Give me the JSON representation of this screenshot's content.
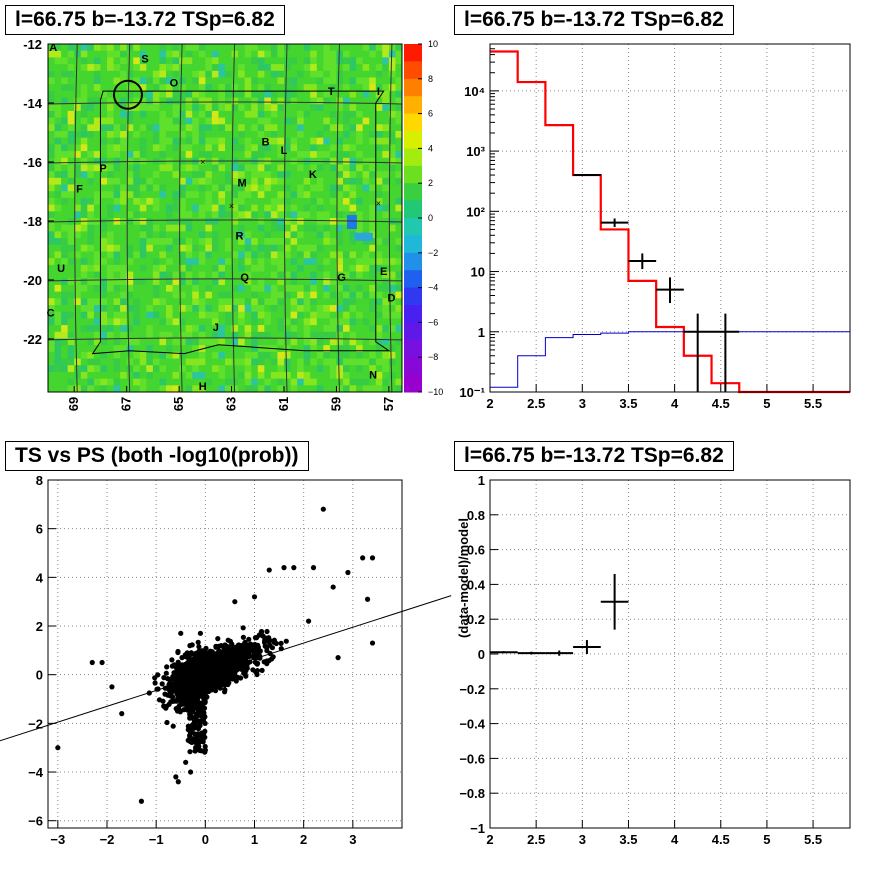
{
  "panels": [
    {
      "title": "l=66.75 b=-13.72 TSp=6.82"
    },
    {
      "title": "l=66.75 b=-13.72 TSp=6.82"
    },
    {
      "title": "TS vs PS (both -log10(prob))"
    },
    {
      "title": "l=66.75 b=-13.72 TSp=6.82"
    }
  ],
  "chart_data": [
    {
      "type": "heatmap",
      "title": "l=66.75 b=-13.72 TSp=6.82",
      "x_ticks": [
        "69",
        "67",
        "65",
        "63",
        "61",
        "59",
        "57"
      ],
      "y_ticks": [
        "-12",
        "-14",
        "-16",
        "-18",
        "-20",
        "-22"
      ],
      "xlim": [
        70,
        56.5
      ],
      "ylim": [
        -23.8,
        -12
      ],
      "z_ticks": [
        "10",
        "8",
        "6",
        "4",
        "2",
        "0",
        "−2",
        "−4",
        "−6",
        "−8",
        "−10"
      ],
      "zlim": [
        -10,
        10
      ],
      "labels": [
        {
          "text": "A",
          "l": 69.8,
          "b": -12.1
        },
        {
          "text": "S",
          "l": 66.3,
          "b": -12.5
        },
        {
          "text": "O",
          "l": 65.2,
          "b": -13.3
        },
        {
          "text": "T",
          "l": 59.2,
          "b": -13.6
        },
        {
          "text": "I",
          "l": 57.4,
          "b": -13.6
        },
        {
          "text": "B",
          "l": 61.7,
          "b": -15.3
        },
        {
          "text": "L",
          "l": 61.0,
          "b": -15.6
        },
        {
          "text": "P",
          "l": 67.9,
          "b": -16.2
        },
        {
          "text": "K",
          "l": 59.9,
          "b": -16.4
        },
        {
          "text": "M",
          "l": 62.6,
          "b": -16.7
        },
        {
          "text": "F",
          "l": 68.8,
          "b": -16.9
        },
        {
          "text": "R",
          "l": 62.7,
          "b": -18.5
        },
        {
          "text": "U",
          "l": 69.5,
          "b": -19.6
        },
        {
          "text": "Q",
          "l": 62.5,
          "b": -19.9
        },
        {
          "text": "G",
          "l": 58.8,
          "b": -19.9
        },
        {
          "text": "E",
          "l": 57.2,
          "b": -19.7
        },
        {
          "text": "D",
          "l": 56.9,
          "b": -20.6
        },
        {
          "text": "C",
          "l": 69.9,
          "b": -21.1
        },
        {
          "text": "J",
          "l": 63.6,
          "b": -21.6
        },
        {
          "text": "H",
          "l": 64.1,
          "b": -23.6
        },
        {
          "text": "N",
          "l": 57.6,
          "b": -23.2
        }
      ],
      "circle": {
        "l": 66.95,
        "b": -13.72
      }
    },
    {
      "type": "line",
      "title": "l=66.75 b=-13.72 TSp=6.82",
      "x_ticks": [
        "2",
        "2.5",
        "3",
        "3.5",
        "4",
        "4.5",
        "5",
        "5.5"
      ],
      "y_ticks": [
        "10⁻¹",
        "1",
        "10",
        "10²",
        "10³",
        "10⁴"
      ],
      "xlim": [
        2,
        5.9
      ],
      "ylim": [
        0.1,
        60000
      ],
      "y_scale": "log",
      "grid": true,
      "bin_edges": [
        2.0,
        2.3,
        2.6,
        2.9,
        3.2,
        3.5,
        3.8,
        4.1,
        4.4,
        4.7,
        5.0,
        5.9
      ],
      "series": [
        {
          "color": "#ff0000",
          "values": [
            45000,
            14000,
            2700,
            400,
            50,
            7,
            1.2,
            0.4,
            0.14,
            0.1,
            0.1
          ]
        },
        {
          "color": "#0000cc",
          "values": [
            0.12,
            0.4,
            0.8,
            0.9,
            0.95,
            1.0,
            1.0,
            1.0,
            1.0,
            1.0,
            1.0
          ]
        }
      ],
      "data_points": [
        {
          "x": 3.05,
          "y": 400,
          "xerr": 0.15,
          "ylo": 390,
          "yhi": 410
        },
        {
          "x": 3.35,
          "y": 65,
          "xerr": 0.15,
          "ylo": 55,
          "yhi": 76
        },
        {
          "x": 3.65,
          "y": 15,
          "xerr": 0.15,
          "ylo": 11,
          "yhi": 20
        },
        {
          "x": 3.95,
          "y": 5,
          "xerr": 0.15,
          "ylo": 3,
          "yhi": 8
        },
        {
          "x": 4.25,
          "y": 1,
          "xerr": 0.15,
          "ylo": 0.1,
          "yhi": 2
        },
        {
          "x": 4.55,
          "y": 1,
          "xerr": 0.15,
          "ylo": 0.1,
          "yhi": 2
        }
      ]
    },
    {
      "type": "scatter",
      "title": "TS vs PS (both -log10(prob))",
      "x_ticks": [
        "−3",
        "−2",
        "−1",
        "0",
        "1",
        "2",
        "3"
      ],
      "y_ticks": [
        "−6",
        "−4",
        "−2",
        "0",
        "2",
        "4",
        "6",
        "8"
      ],
      "xlim": [
        -3.2,
        4
      ],
      "ylim": [
        -6.3,
        8
      ],
      "grid": true,
      "fit_line": {
        "slope": 0.65,
        "intercept": 0
      },
      "outliers": [
        {
          "x": 2.4,
          "y": 6.8
        },
        {
          "x": 3.2,
          "y": 4.8
        },
        {
          "x": 3.4,
          "y": 4.8
        },
        {
          "x": 3.4,
          "y": 1.3
        },
        {
          "x": 2.9,
          "y": 4.2
        },
        {
          "x": 2.6,
          "y": 3.6
        },
        {
          "x": 2.2,
          "y": 4.4
        },
        {
          "x": 2.7,
          "y": 0.7
        },
        {
          "x": 3.3,
          "y": 3.1
        },
        {
          "x": -2.3,
          "y": 0.5
        },
        {
          "x": -2.1,
          "y": 0.5
        },
        {
          "x": -3.0,
          "y": -3.0
        },
        {
          "x": -1.3,
          "y": -5.2
        },
        {
          "x": -0.6,
          "y": -4.2
        },
        {
          "x": -0.55,
          "y": -4.4
        },
        {
          "x": -0.4,
          "y": -3.6
        },
        {
          "x": -1.7,
          "y": -1.6
        },
        {
          "x": -1.9,
          "y": -0.5
        },
        {
          "x": -0.5,
          "y": 1.7
        },
        {
          "x": -0.1,
          "y": 1.7
        },
        {
          "x": 1.3,
          "y": 4.3
        },
        {
          "x": 1.8,
          "y": 4.4
        },
        {
          "x": 1.6,
          "y": 4.4
        },
        {
          "x": 0.6,
          "y": 3.0
        },
        {
          "x": 2.1,
          "y": 2.2
        },
        {
          "x": 1.0,
          "y": 3.2
        },
        {
          "x": -0.3,
          "y": -4.0
        },
        {
          "x": 0.0,
          "y": -3.1
        }
      ]
    },
    {
      "type": "scatter",
      "title": "l=66.75 b=-13.72 TSp=6.82",
      "ylabel": "(data-model)/model",
      "x_ticks": [
        "2",
        "2.5",
        "3",
        "3.5",
        "4",
        "4.5",
        "5",
        "5.5"
      ],
      "y_ticks": [
        "−1",
        "−0.8",
        "−0.6",
        "−0.4",
        "−0.2",
        "0",
        "0.2",
        "0.4",
        "0.6",
        "0.8",
        "1"
      ],
      "xlim": [
        2,
        5.9
      ],
      "ylim": [
        -1,
        1
      ],
      "grid": true,
      "points": [
        {
          "x": 2.15,
          "y": 0.01,
          "xerr": 0.15,
          "yerr": 0.006
        },
        {
          "x": 2.45,
          "y": 0.005,
          "xerr": 0.15,
          "yerr": 0.008
        },
        {
          "x": 2.75,
          "y": 0.005,
          "xerr": 0.15,
          "yerr": 0.015
        },
        {
          "x": 3.05,
          "y": 0.04,
          "xerr": 0.15,
          "yerr": 0.04
        },
        {
          "x": 3.35,
          "y": 0.3,
          "xerr": 0.15,
          "yerr": 0.16
        }
      ]
    }
  ]
}
